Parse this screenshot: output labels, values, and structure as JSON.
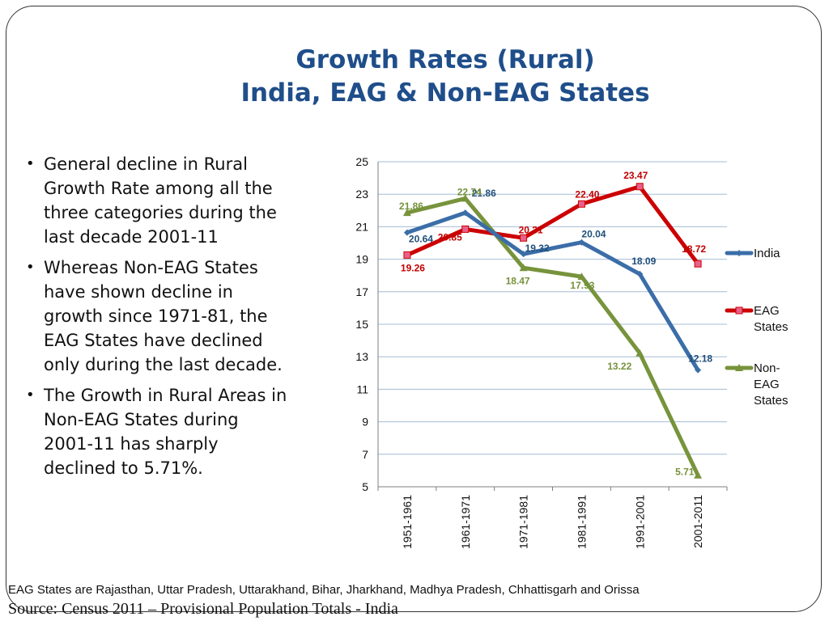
{
  "slide": {
    "title_line1": "Growth Rates (Rural)",
    "title_line2": "India, EAG & Non-EAG States",
    "bullets": [
      "General decline in Rural Growth Rate among all the three categories during the last decade 2001-11",
      "Whereas Non-EAG States have shown decline in growth since 1971-81, the EAG States have declined only during the last decade.",
      "The Growth in Rural Areas in Non-EAG States during 2001-11 has sharply declined to 5.71%."
    ],
    "footnote": "EAG States are Rajasthan, Uttar Pradesh, Uttarakhand, Bihar, Jharkhand, Madhya Pradesh, Chhattisgarh and Orissa",
    "source": "Source: Census 2011 – Provisional Population Totals - India"
  },
  "chart_data": {
    "type": "line",
    "categories": [
      "1951-1961",
      "1961-1971",
      "1971-1981",
      "1981-1991",
      "1991-2001",
      "2001-2011"
    ],
    "ylim": [
      5,
      25
    ],
    "yticks": [
      "5",
      "7",
      "9",
      "11",
      "13",
      "15",
      "17",
      "19",
      "21",
      "23",
      "25"
    ],
    "grid": true,
    "legend_position": "right",
    "series": [
      {
        "name": "India",
        "legend_lines": [
          "India"
        ],
        "color": "#3b6ea8",
        "label_color": "#1f4e79",
        "values": [
          20.64,
          21.86,
          19.32,
          20.04,
          18.09,
          12.18
        ],
        "labels": [
          "20.64",
          "21.86",
          "19.32",
          "20.04",
          "18.09",
          "12.18"
        ]
      },
      {
        "name": "EAG States",
        "legend_lines": [
          "EAG",
          "States"
        ],
        "color": "#cc0000",
        "label_color": "#c00000",
        "values": [
          19.26,
          20.85,
          20.31,
          22.4,
          23.47,
          18.72
        ],
        "labels": [
          "19.26",
          "20.85",
          "20.31",
          "22.40",
          "23.47",
          "18.72"
        ]
      },
      {
        "name": "Non-EAG States",
        "legend_lines": [
          "Non-",
          "EAG",
          "States"
        ],
        "color": "#77933c",
        "label_color": "#76923c",
        "values": [
          21.86,
          22.74,
          18.47,
          17.93,
          13.22,
          5.71
        ],
        "labels": [
          "21.86",
          "22.74",
          "18.47",
          "17.93",
          "13.22",
          "5.71"
        ]
      }
    ]
  }
}
